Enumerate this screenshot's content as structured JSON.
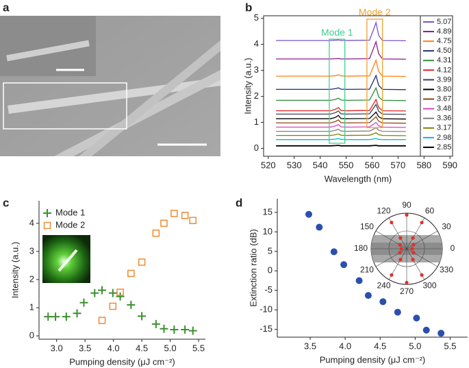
{
  "panel_labels": [
    "a",
    "b",
    "c",
    "d"
  ],
  "chart_data": [
    {
      "type": "line",
      "xlabel": "Wavelength (nm)",
      "ylabel": "Intensity (a.u.)",
      "x": [
        523,
        544,
        546,
        547,
        548,
        550,
        559,
        560.5,
        561.5,
        562.5,
        564,
        573
      ],
      "xlim": [
        518.2,
        591
      ],
      "ylim": [
        -0.3,
        5.1
      ],
      "xticks": [
        520,
        530,
        540,
        550,
        560,
        570,
        580,
        590
      ],
      "yticks": [
        0,
        1,
        2,
        3,
        4,
        5
      ],
      "series": [
        {
          "name": "5.07",
          "color": "#7b52c8",
          "values": [
            4.15,
            4.15,
            4.16,
            4.17,
            4.15,
            4.15,
            4.16,
            4.56,
            4.84,
            4.35,
            4.15,
            4.14
          ]
        },
        {
          "name": "4.89",
          "color": "#8b1a8b",
          "values": [
            3.44,
            3.44,
            3.45,
            3.46,
            3.44,
            3.44,
            3.45,
            3.84,
            4.1,
            3.64,
            3.44,
            3.43
          ]
        },
        {
          "name": "4.75",
          "color": "#ff7f0e",
          "values": [
            2.78,
            2.78,
            2.8,
            2.83,
            2.79,
            2.78,
            2.79,
            3.15,
            3.39,
            2.96,
            2.78,
            2.77
          ]
        },
        {
          "name": "4.50",
          "color": "#1f2a7a",
          "values": [
            2.27,
            2.27,
            2.3,
            2.33,
            2.28,
            2.27,
            2.28,
            2.59,
            2.8,
            2.43,
            2.27,
            2.26
          ]
        },
        {
          "name": "4.31",
          "color": "#2e8b3a",
          "values": [
            1.85,
            1.85,
            1.89,
            1.93,
            1.86,
            1.85,
            1.86,
            2.14,
            2.33,
            1.99,
            1.85,
            1.84
          ]
        },
        {
          "name": "4.12",
          "color": "#e02020",
          "values": [
            1.45,
            1.45,
            1.51,
            1.57,
            1.46,
            1.45,
            1.46,
            1.71,
            1.88,
            1.58,
            1.45,
            1.44
          ]
        },
        {
          "name": "3.99",
          "color": "#3a3f55",
          "values": [
            1.32,
            1.32,
            1.38,
            1.44,
            1.33,
            1.32,
            1.33,
            1.55,
            1.69,
            1.43,
            1.32,
            1.31
          ]
        },
        {
          "name": "3.80",
          "color": "#000000",
          "values": [
            1.14,
            1.14,
            1.2,
            1.27,
            1.15,
            1.14,
            1.15,
            1.3,
            1.4,
            1.22,
            1.14,
            1.13
          ]
        },
        {
          "name": "3.67",
          "color": "#8b4513",
          "values": [
            0.98,
            0.98,
            1.04,
            1.1,
            0.99,
            0.98,
            0.99,
            1.13,
            1.22,
            1.05,
            0.98,
            0.97
          ]
        },
        {
          "name": "3.48",
          "color": "#e040c0",
          "values": [
            0.82,
            0.82,
            0.87,
            0.92,
            0.83,
            0.82,
            0.83,
            0.93,
            1.0,
            0.87,
            0.82,
            0.81
          ]
        },
        {
          "name": "3.36",
          "color": "#808080",
          "values": [
            0.66,
            0.66,
            0.7,
            0.74,
            0.67,
            0.66,
            0.67,
            0.74,
            0.8,
            0.7,
            0.66,
            0.65
          ]
        },
        {
          "name": "3.17",
          "color": "#808000",
          "values": [
            0.5,
            0.5,
            0.53,
            0.56,
            0.51,
            0.5,
            0.51,
            0.56,
            0.6,
            0.53,
            0.5,
            0.49
          ]
        },
        {
          "name": "2.98",
          "color": "#00bcd4",
          "values": [
            0.34,
            0.34,
            0.36,
            0.38,
            0.35,
            0.34,
            0.34,
            0.36,
            0.38,
            0.35,
            0.34,
            0.34
          ]
        },
        {
          "name": "2.85",
          "color": "#000000",
          "values": [
            0.1,
            0.1,
            0.11,
            0.12,
            0.1,
            0.1,
            0.1,
            0.11,
            0.12,
            0.1,
            0.1,
            0.1
          ]
        }
      ],
      "annotations": [
        {
          "text": "Mode 1",
          "color": "#3fcf8e",
          "x_range": [
            543.5,
            549.5
          ],
          "y_range": [
            0.2,
            4.2
          ]
        },
        {
          "text": "Mode 2",
          "color": "#f0a030",
          "x_range": [
            558,
            564
          ],
          "y_range": [
            0.8,
            4.97
          ]
        }
      ]
    },
    {
      "type": "scatter",
      "xlabel": "Pumping density (μJ cm⁻²)",
      "ylabel": "Intensity (a.u.)",
      "xlim": [
        2.69,
        5.62
      ],
      "ylim": [
        -0.12,
        4.8
      ],
      "xticks": [
        {
          "value": 3,
          "label": "3.0"
        },
        3.5,
        {
          "value": 4,
          "label": "4.0"
        },
        4.5,
        {
          "value": 5,
          "label": "5.0"
        },
        5.5
      ],
      "yticks": [
        0,
        1,
        2,
        3,
        4
      ],
      "legend": "top-left",
      "series": [
        {
          "name": "Mode 1",
          "color": "#3a8f2e",
          "marker": "plus",
          "x": [
            2.85,
            2.98,
            3.17,
            3.36,
            3.48,
            3.67,
            3.8,
            3.99,
            4.12,
            4.31,
            4.5,
            4.75,
            4.89,
            5.07,
            5.26,
            5.4
          ],
          "values": [
            0.68,
            0.68,
            0.68,
            0.8,
            1.18,
            1.52,
            1.62,
            1.52,
            1.4,
            1.1,
            0.7,
            0.42,
            0.25,
            0.22,
            0.22,
            0.18
          ]
        },
        {
          "name": "Mode 2",
          "color": "#f08a30",
          "marker": "square",
          "x": [
            3.8,
            3.99,
            4.12,
            4.31,
            4.5,
            4.75,
            4.89,
            5.07,
            5.26,
            5.4
          ],
          "values": [
            0.55,
            1.05,
            1.55,
            2.22,
            2.62,
            3.65,
            4.0,
            4.35,
            4.28,
            4.1
          ]
        }
      ]
    },
    {
      "type": "scatter",
      "xlabel": "Pumping density (μJ cm⁻²)",
      "ylabel": "Extinction ratio (dB)",
      "xlim": [
        3.03,
        5.75
      ],
      "ylim": [
        -17,
        18.5
      ],
      "xticks": [
        3.5,
        {
          "value": 4,
          "label": "4.0"
        },
        4.5,
        {
          "value": 5,
          "label": "5.0"
        },
        5.5
      ],
      "yticks": [
        -15,
        -10,
        -5,
        0,
        5,
        10,
        15
      ],
      "color": "#2a4fae",
      "marker": "circle",
      "x": [
        3.48,
        3.63,
        3.84,
        3.98,
        4.2,
        4.33,
        4.54,
        4.75,
        5.02,
        5.16,
        5.37
      ],
      "values": [
        14.5,
        11.2,
        4.9,
        1.6,
        -2.5,
        -6.3,
        -7.9,
        -10.6,
        -12.1,
        -15.2,
        -16.0
      ],
      "inset": {
        "type": "polar",
        "color": "#e0302a",
        "rlim": [
          0,
          1
        ],
        "angles": [
          90,
          60,
          30,
          0,
          330,
          300,
          270,
          240,
          210,
          180,
          150,
          120
        ],
        "theta": [
          0,
          30,
          60,
          90,
          120,
          150,
          180,
          210,
          240,
          270,
          300,
          330,
          60,
          120,
          240,
          300
        ],
        "values": [
          0.15,
          0.22,
          0.85,
          0.95,
          0.85,
          0.22,
          0.15,
          0.22,
          0.85,
          0.95,
          0.85,
          0.22,
          0.35,
          0.35,
          0.35,
          0.35
        ]
      }
    }
  ]
}
